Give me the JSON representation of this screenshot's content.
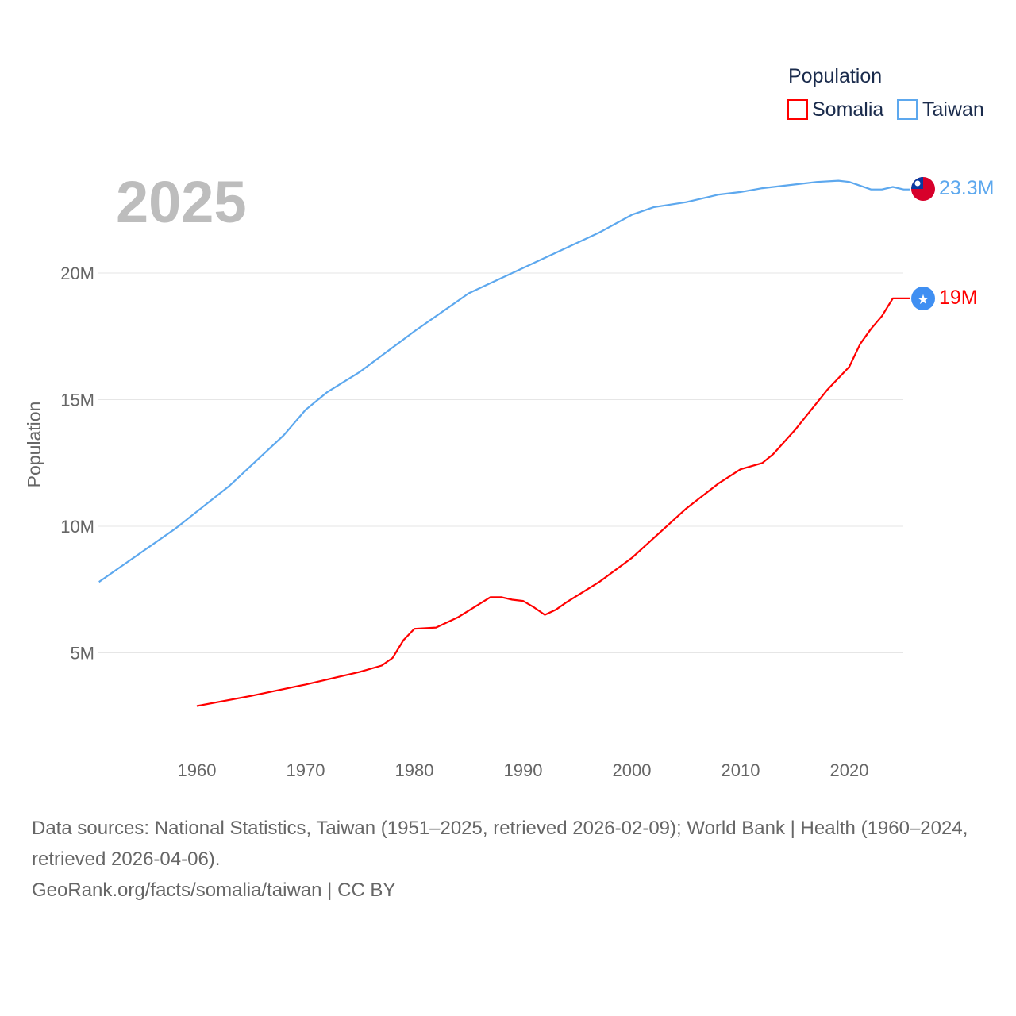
{
  "chart_data": {
    "type": "line",
    "title": "Population",
    "year_label": "2025",
    "ylabel": "Population",
    "xlabel": "",
    "xlim": [
      1951,
      2025
    ],
    "ylim": [
      0,
      23.6
    ],
    "y_unit": "millions",
    "x_ticks": [
      "1960",
      "1970",
      "1980",
      "1990",
      "2000",
      "2010",
      "2020"
    ],
    "x_tick_values": [
      1960,
      1970,
      1980,
      1990,
      2000,
      2010,
      2020
    ],
    "y_ticks": [
      "5M",
      "10M",
      "15M",
      "20M"
    ],
    "y_tick_values": [
      5,
      10,
      15,
      20
    ],
    "grid": true,
    "legend_position": "top-right",
    "series": [
      {
        "name": "Somalia",
        "color": "#ff0000",
        "end_label": "19M",
        "flag_icon": "somalia-flag-icon",
        "x": [
          1960,
          1965,
          1970,
          1975,
          1977,
          1978,
          1979,
          1980,
          1982,
          1984,
          1987,
          1988,
          1989,
          1990,
          1991,
          1992,
          1993,
          1994,
          1997,
          2000,
          2005,
          2008,
          2010,
          2012,
          2013,
          2015,
          2018,
          2020,
          2021,
          2022,
          2023,
          2024
        ],
        "values": [
          2.9,
          3.3,
          3.75,
          4.25,
          4.5,
          4.8,
          5.5,
          5.95,
          6.0,
          6.4,
          7.2,
          7.2,
          7.1,
          7.05,
          6.8,
          6.5,
          6.7,
          7.0,
          7.8,
          8.75,
          10.7,
          11.7,
          12.25,
          12.5,
          12.85,
          13.8,
          15.4,
          16.3,
          17.2,
          17.8,
          18.3,
          19.0
        ]
      },
      {
        "name": "Taiwan",
        "color": "#5da8ee",
        "end_label": "23.3M",
        "flag_icon": "taiwan-flag-icon",
        "x": [
          1951,
          1953,
          1958,
          1963,
          1966,
          1968,
          1970,
          1972,
          1975,
          1980,
          1983,
          1985,
          1988,
          1990,
          1992,
          1995,
          1997,
          2000,
          2002,
          2005,
          2008,
          2010,
          2012,
          2015,
          2017,
          2019,
          2020,
          2021,
          2022,
          2023,
          2024,
          2025
        ],
        "values": [
          7.8,
          8.4,
          9.9,
          11.6,
          12.8,
          13.6,
          14.6,
          15.3,
          16.1,
          17.7,
          18.6,
          19.2,
          19.8,
          20.2,
          20.6,
          21.2,
          21.6,
          22.3,
          22.6,
          22.8,
          23.1,
          23.2,
          23.35,
          23.5,
          23.6,
          23.65,
          23.6,
          23.45,
          23.3,
          23.3,
          23.4,
          23.3
        ]
      }
    ],
    "source_lines": [
      "Data sources: National Statistics, Taiwan (1951–2025, retrieved 2026-02-09); World Bank | Health (1960–2024, retrieved 2026-04-06).",
      "GeoRank.org/facts/somalia/taiwan | CC BY"
    ]
  }
}
